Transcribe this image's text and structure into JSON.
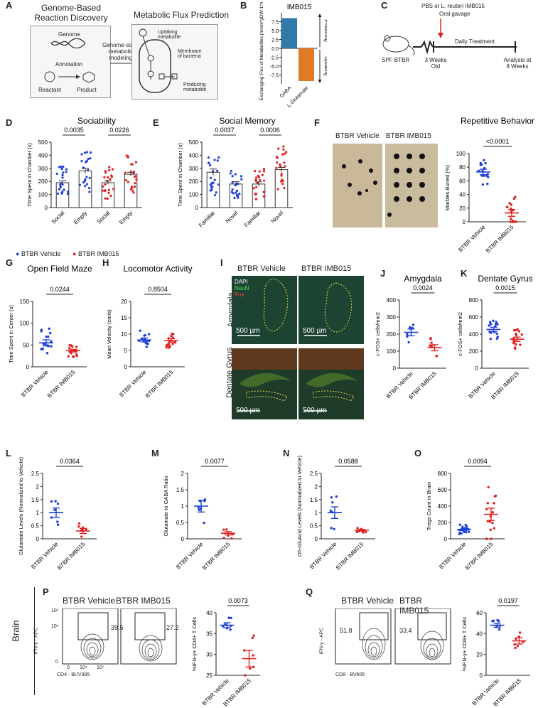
{
  "panels": {
    "A": {
      "letter": "A",
      "left_title": "Genome-Based\nReaction Discovery",
      "right_title": "Metabolic Flux Prediction",
      "genome": "Genome",
      "annotation": "Annotation",
      "reactant": "Reactant",
      "product": "Product",
      "arrow_label": "Genome-scale\nmetabolic\nmodeling",
      "uptaking": "Uptaking\nmetabolite",
      "membrane": "Membrane\nof bacteria",
      "producing": "Producing\nmetabolite"
    },
    "B": {
      "letter": "B"
    },
    "C": {
      "letter": "C",
      "treat": "PBS or L. reuteri IMB015",
      "treat2": "Oral gavage",
      "mouse": "SPF BTBR",
      "start": "3 Weeks\nOld",
      "daily": "Daily Treatment",
      "end": "Analysis at\n8 Weeks"
    },
    "D": {
      "letter": "D"
    },
    "E": {
      "letter": "E"
    },
    "F": {
      "letter": "F",
      "img_left": "BTBR Vehicle",
      "img_right": "BTBR IMB015"
    },
    "G": {
      "letter": "G"
    },
    "H": {
      "letter": "H"
    },
    "I": {
      "letter": "I",
      "col_left": "BTBR Vehicle",
      "col_right": "BTBR IMB015",
      "row_top": "Amygdala",
      "row_bottom": "Dentate Gyrus",
      "legend": [
        "DAPI",
        "NeuN",
        "Fos"
      ],
      "scalebar": "500 µm"
    },
    "J": {
      "letter": "J"
    },
    "K": {
      "letter": "K"
    },
    "L": {
      "letter": "L"
    },
    "M": {
      "letter": "M"
    },
    "N": {
      "letter": "N"
    },
    "O": {
      "letter": "O"
    },
    "P": {
      "letter": "P",
      "col_left": "BTBR Vehicle",
      "col_right": "BTBR IMB015",
      "gate_left": "39.5",
      "gate_right": "27.2",
      "ylabel": "IFN-γ - APC",
      "xlabel": "CD4 - BUV395",
      "yticks": [
        "10⁵",
        "10⁴",
        "0"
      ],
      "xticks": [
        "0",
        "10⁴",
        "10⁵"
      ]
    },
    "Q": {
      "letter": "Q",
      "col_left": "BTBR Vehicle",
      "col_right": "BTBR IMB015",
      "gate_left": "51.8",
      "gate_right": "33.4",
      "ylabel": "IFN-γ - APC",
      "xlabel": "CD8 - BV605"
    },
    "brain_label": "Brain",
    "legend": {
      "vehicle": "BTBR Vehicle",
      "imb": "BTBR IMB015"
    }
  },
  "colors": {
    "vehicle": "#1f3fd8",
    "imb": "#e02020",
    "gaba_bar": "#2e7bab",
    "glu_bar": "#e07a25"
  },
  "chart_data": [
    {
      "id": "B",
      "type": "bar",
      "title": "IMB015",
      "ylabel": "Exchanging Flux of Metabolites (mmol*gDW-1*h-1)",
      "categories": [
        "GABA",
        "L-Glutamate"
      ],
      "values": [
        8.5,
        -9.2
      ],
      "ylim": [
        -10,
        10
      ],
      "yticks": [
        7.5,
        5.0,
        2.5,
        0.0,
        -2.5,
        -5.0,
        -7.5
      ],
      "arrow_labels": [
        "Producing",
        "Uptaking"
      ]
    },
    {
      "id": "D",
      "type": "bar",
      "title": "Sociability",
      "ylabel": "Time Spent in Chamber (s)",
      "categories": [
        "Social",
        "Empty",
        "Social",
        "Empty"
      ],
      "values": [
        190,
        280,
        190,
        255
      ],
      "sem": [
        15,
        20,
        13,
        15
      ],
      "groups": [
        "vehicle",
        "vehicle",
        "imb",
        "imb"
      ],
      "ylim": [
        0,
        500
      ],
      "yticks": [
        0,
        100,
        200,
        300,
        400,
        500
      ],
      "pvalues": [
        {
          "text": "0.0035",
          "pair": [
            0,
            1
          ]
        },
        {
          "text": "0.0226",
          "pair": [
            2,
            3
          ]
        }
      ]
    },
    {
      "id": "E",
      "type": "bar",
      "title": "Social Memory",
      "ylabel": "Time Spent in Chamber (s)",
      "categories": [
        "Familiar",
        "Novel",
        "Familiar",
        "Novel"
      ],
      "values": [
        270,
        180,
        180,
        290
      ],
      "sem": [
        25,
        18,
        17,
        17
      ],
      "groups": [
        "vehicle",
        "vehicle",
        "imb",
        "imb"
      ],
      "ylim": [
        0,
        500
      ],
      "yticks": [
        0,
        100,
        200,
        300,
        400,
        500
      ],
      "pvalues": [
        {
          "text": "0.0037",
          "pair": [
            0,
            1
          ]
        },
        {
          "text": "0.0006",
          "pair": [
            2,
            3
          ]
        }
      ]
    },
    {
      "id": "F",
      "type": "scatter",
      "title": "Repetitive Behavior",
      "ylabel": "Marbles Buried (%)",
      "categories": [
        "BTBR Vehicle",
        "BTBR IMB015"
      ],
      "means": [
        73,
        13
      ],
      "sem": [
        4,
        5
      ],
      "ylim": [
        0,
        100
      ],
      "yticks": [
        0,
        20,
        40,
        60,
        80,
        100
      ],
      "pvalues": [
        {
          "text": "<0.0001",
          "pair": [
            0,
            1
          ]
        }
      ]
    },
    {
      "id": "G",
      "type": "scatter",
      "title": "Open Field Maze",
      "ylabel": "Time Spent in Center (s)",
      "categories": [
        "BTBR Vehicle",
        "BTBR IMB015"
      ],
      "means": [
        55,
        37
      ],
      "sem": [
        7,
        3
      ],
      "ylim": [
        0,
        150
      ],
      "yticks": [
        0,
        50,
        100,
        150
      ],
      "pvalues": [
        {
          "text": "0.0244",
          "pair": [
            0,
            1
          ]
        }
      ]
    },
    {
      "id": "H",
      "type": "scatter",
      "title": "Locomotor Activity",
      "ylabel": "Mean Velocity (cm/s)",
      "categories": [
        "BTBR Vehicle",
        "BTBR IMB015"
      ],
      "means": [
        8.2,
        8.1
      ],
      "sem": [
        0.6,
        0.5
      ],
      "ylim": [
        0,
        20
      ],
      "yticks": [
        0,
        5,
        10,
        15,
        20
      ],
      "pvalues": [
        {
          "text": "0.8504",
          "pair": [
            0,
            1
          ]
        }
      ]
    },
    {
      "id": "J",
      "type": "scatter",
      "title": "Amygdala",
      "ylabel": "c-FOS+ cells/mm2",
      "categories": [
        "BTBR Vehicle",
        "BTBR IMB015"
      ],
      "means": [
        210,
        120
      ],
      "sem": [
        20,
        18
      ],
      "ylim": [
        0,
        400
      ],
      "yticks": [
        0,
        100,
        200,
        300,
        400
      ],
      "pvalues": [
        {
          "text": "0.0024",
          "pair": [
            0,
            1
          ]
        }
      ]
    },
    {
      "id": "K",
      "type": "scatter",
      "title": "Dentate Gyrus",
      "ylabel": "c-FOS+ cells/mm2",
      "categories": [
        "BTBR Vehicle",
        "BTBR IMB015"
      ],
      "means": [
        455,
        340
      ],
      "sem": [
        25,
        25
      ],
      "ylim": [
        0,
        800
      ],
      "yticks": [
        0,
        200,
        400,
        600,
        800
      ],
      "pvalues": [
        {
          "text": "0.0015",
          "pair": [
            0,
            1
          ]
        }
      ]
    },
    {
      "id": "L",
      "type": "scatter",
      "title": "",
      "ylabel": "Glutamate Levels (Normalized to Vehicle)",
      "categories": [
        "BTBR Vehicle",
        "BTBR IMB015"
      ],
      "means": [
        1.0,
        0.3
      ],
      "sem": [
        0.18,
        0.1
      ],
      "ylim": [
        0,
        2.5
      ],
      "yticks": [
        0.0,
        0.5,
        1.0,
        1.5,
        2.0,
        2.5
      ],
      "pvalues": [
        {
          "text": "0.0364",
          "pair": [
            0,
            1
          ]
        }
      ]
    },
    {
      "id": "M",
      "type": "scatter",
      "title": "",
      "ylabel": "Glutamate to GABA Ratio",
      "categories": [
        "BTBR Vehicle",
        "BTBR IMB015"
      ],
      "means": [
        1.0,
        0.17
      ],
      "sem": [
        0.18,
        0.05
      ],
      "ylim": [
        0,
        2.0
      ],
      "yticks": [
        0.0,
        0.5,
        1.0,
        1.5,
        2.0
      ],
      "pvalues": [
        {
          "text": "0.0077",
          "pair": [
            0,
            1
          ]
        }
      ]
    },
    {
      "id": "N",
      "type": "scatter",
      "title": "",
      "ylabel": "Oh-GluAcid Levels (Normalized to Vehicle)",
      "categories": [
        "BTBR Vehicle",
        "BTBR IMB015"
      ],
      "means": [
        1.0,
        0.33
      ],
      "sem": [
        0.22,
        0.03
      ],
      "ylim": [
        0,
        2.5
      ],
      "yticks": [
        0.0,
        0.5,
        1.0,
        1.5,
        2.0,
        2.5
      ],
      "pvalues": [
        {
          "text": "0.0588",
          "pair": [
            0,
            1
          ]
        }
      ]
    },
    {
      "id": "O",
      "type": "scatter",
      "title": "",
      "ylabel": "Tregs Count in Brain",
      "categories": [
        "BTBR Vehicle",
        "BTBR IMB015"
      ],
      "means": [
        115,
        300
      ],
      "sem": [
        12,
        75
      ],
      "ylim": [
        0,
        800
      ],
      "yticks": [
        0,
        200,
        400,
        600,
        800
      ],
      "pvalues": [
        {
          "text": "0.0094",
          "pair": [
            0,
            1
          ]
        }
      ]
    },
    {
      "id": "P",
      "type": "scatter",
      "title": "",
      "ylabel": "%IFN-γ+ CD4+ T Cells",
      "categories": [
        "BTBR Vehicle",
        "BTBR IMB015"
      ],
      "means": [
        37,
        29
      ],
      "sem": [
        0.6,
        2
      ],
      "ylim": [
        25,
        40
      ],
      "yticks": [
        25,
        30,
        35,
        40
      ],
      "pvalues": [
        {
          "text": "0.0073",
          "pair": [
            0,
            1
          ]
        }
      ]
    },
    {
      "id": "Q",
      "type": "scatter",
      "title": "",
      "ylabel": "%IFN-γ+ CD8+ T Cells",
      "categories": [
        "BTBR Vehicle",
        "BTBR IMB015"
      ],
      "means": [
        48,
        33
      ],
      "sem": [
        2,
        3
      ],
      "ylim": [
        0,
        60
      ],
      "yticks": [
        0,
        20,
        40,
        60
      ],
      "pvalues": [
        {
          "text": "0.0197",
          "pair": [
            0,
            1
          ]
        }
      ]
    }
  ]
}
